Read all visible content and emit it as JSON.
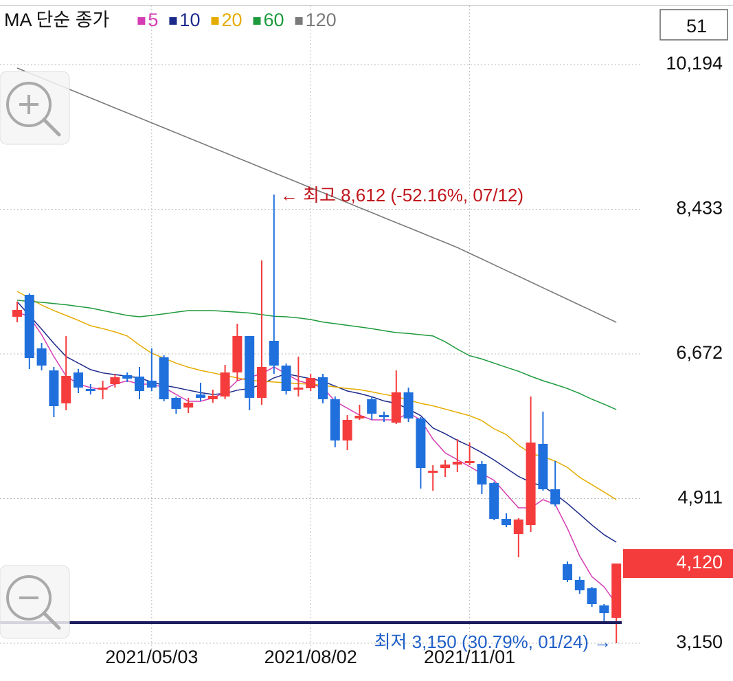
{
  "chart_data": {
    "type": "candlestick",
    "legend_title": "MA 단순 종가",
    "badge": "51",
    "categories": [
      null,
      null,
      null,
      null,
      null,
      null,
      null,
      null,
      null,
      null,
      null,
      "2021/05/03",
      null,
      null,
      null,
      null,
      null,
      null,
      null,
      null,
      null,
      null,
      null,
      null,
      "2021/08/02",
      null,
      null,
      null,
      null,
      null,
      null,
      null,
      null,
      null,
      null,
      null,
      null,
      "2021/11/01",
      null,
      null,
      null,
      null,
      null,
      null,
      null,
      null,
      null,
      null,
      null,
      null
    ],
    "open": [
      7124,
      7391,
      6739,
      6471,
      6070,
      6446,
      6245,
      6237,
      6304,
      6413,
      6396,
      6346,
      6630,
      6137,
      6019,
      6178,
      6120,
      6153,
      6446,
      6890,
      6137,
      6831,
      6530,
      6237,
      6254,
      6388,
      6120,
      5618,
      5886,
      6120,
      5927,
      5835,
      6204,
      5886,
      5225,
      5283,
      5325,
      5342,
      5333,
      5099,
      4664,
      4480,
      4589,
      5576,
      5024,
      4112,
      3920,
      3819,
      3610,
      3459
    ],
    "high": [
      7308,
      7408,
      6806,
      6513,
      6890,
      6488,
      6304,
      6346,
      6429,
      6446,
      6513,
      6739,
      6655,
      6153,
      6137,
      6321,
      6237,
      6538,
      7040,
      6890,
      7810,
      8612,
      6555,
      6639,
      6429,
      6429,
      6153,
      5927,
      6053,
      6153,
      5969,
      6471,
      6262,
      5902,
      5317,
      5384,
      5635,
      5593,
      5367,
      5116,
      4731,
      4673,
      6153,
      5969,
      5367,
      4145,
      3961,
      3836,
      3627,
      4120
    ],
    "low": [
      7057,
      6488,
      6471,
      5902,
      5986,
      6195,
      6178,
      6120,
      6262,
      6329,
      6120,
      6220,
      6095,
      5944,
      5953,
      6095,
      6078,
      6120,
      6346,
      5986,
      6053,
      6429,
      6178,
      6153,
      6220,
      6070,
      5534,
      5501,
      5869,
      5869,
      5844,
      5819,
      5844,
      5032,
      5007,
      5174,
      5233,
      5317,
      4965,
      4647,
      4564,
      4196,
      4505,
      5007,
      4815,
      3894,
      3752,
      3593,
      3418,
      3150
    ],
    "close": [
      7207,
      6622,
      6530,
      6036,
      6404,
      6262,
      6220,
      6262,
      6388,
      6371,
      6220,
      6262,
      6120,
      6003,
      6078,
      6137,
      6162,
      6446,
      6890,
      6137,
      6513,
      6530,
      6220,
      6262,
      6379,
      6120,
      5618,
      5869,
      5919,
      5944,
      5902,
      6204,
      5886,
      5283,
      5250,
      5325,
      5359,
      5367,
      5082,
      4664,
      4589,
      4656,
      5593,
      5024,
      4840,
      3920,
      3794,
      3627,
      3518,
      4120
    ],
    "up_color": "#f53c3c",
    "down_color": "#1f6fdc",
    "series": [
      {
        "name": "5",
        "color": "#d53cb4",
        "values": [
          7182,
          7124,
          6906,
          6639,
          6404,
          6304,
          6262,
          6237,
          6304,
          6346,
          6304,
          6304,
          6262,
          6178,
          6095,
          6095,
          6137,
          6204,
          6346,
          6388,
          6429,
          6513,
          6429,
          6346,
          6304,
          6262,
          6095,
          6011,
          5927,
          5869,
          5869,
          5869,
          5953,
          5869,
          5635,
          5467,
          5384,
          5300,
          5216,
          5133,
          4965,
          4798,
          4798,
          4898,
          4840,
          4547,
          4212,
          3961,
          3836,
          3627
        ]
      },
      {
        "name": "10",
        "color": "#1c2a8a",
        "values": [
          7308,
          7140,
          6973,
          6800,
          6639,
          6560,
          6480,
          6440,
          6420,
          6400,
          6380,
          6330,
          6290,
          6262,
          6230,
          6200,
          6178,
          6190,
          6230,
          6250,
          6300,
          6380,
          6429,
          6400,
          6370,
          6340,
          6280,
          6220,
          6190,
          6150,
          6100,
          6070,
          6000,
          5920,
          5770,
          5700,
          5620,
          5551,
          5470,
          5380,
          5280,
          5180,
          5110,
          5060,
          4965,
          4850,
          4720,
          4590,
          4470,
          4380
        ]
      },
      {
        "name": "20",
        "color": "#e5ab00",
        "values": [
          7433,
          7350,
          7266,
          7200,
          7140,
          7080,
          7015,
          6980,
          6940,
          6890,
          6780,
          6680,
          6620,
          6560,
          6510,
          6471,
          6440,
          6410,
          6380,
          6350,
          6340,
          6330,
          6320,
          6310,
          6304,
          6290,
          6270,
          6250,
          6237,
          6210,
          6180,
          6153,
          6110,
          6070,
          6040,
          6000,
          5960,
          5920,
          5860,
          5760,
          5690,
          5560,
          5460,
          5420,
          5367,
          5290,
          5170,
          5080,
          4990,
          4898
        ]
      },
      {
        "name": "60",
        "color": "#1e9a3c",
        "values": [
          7325,
          7310,
          7300,
          7285,
          7270,
          7250,
          7230,
          7200,
          7170,
          7140,
          7124,
          7140,
          7160,
          7180,
          7199,
          7199,
          7199,
          7190,
          7180,
          7170,
          7150,
          7130,
          7124,
          7110,
          7090,
          7060,
          7040,
          7020,
          7000,
          6980,
          6955,
          6931,
          6920,
          6905,
          6890,
          6820,
          6730,
          6650,
          6610,
          6560,
          6510,
          6460,
          6400,
          6346,
          6300,
          6250,
          6190,
          6120,
          6060,
          5994
        ]
      },
      {
        "name": "120",
        "color": "#7a7a7a",
        "values": [
          10152,
          10091,
          10031,
          9970,
          9909,
          9848,
          9788,
          9727,
          9666,
          9606,
          9545,
          9484,
          9424,
          9363,
          9302,
          9242,
          9181,
          9120,
          9059,
          8999,
          8938,
          8877,
          8817,
          8756,
          8695,
          8635,
          8574,
          8513,
          8452,
          8392,
          8331,
          8270,
          8210,
          8149,
          8088,
          8028,
          7967,
          7897,
          7827,
          7757,
          7687,
          7617,
          7547,
          7477,
          7407,
          7337,
          7267,
          7197,
          7127,
          7057
        ]
      }
    ],
    "ylim": [
      3075,
      10913
    ],
    "yticks": [
      {
        "value": 3150,
        "label": "3,150"
      },
      {
        "value": 4911,
        "label": "4,911"
      },
      {
        "value": 6672,
        "label": "6,672"
      },
      {
        "value": 8433,
        "label": "8,433"
      },
      {
        "value": 10194,
        "label": "10,194"
      }
    ],
    "reference_line": 3401,
    "current_price": {
      "value": 4120,
      "label": "4,120"
    },
    "high_annotation": "← 최고 8,612 (-52.16%, 07/12)",
    "low_annotation": "최저 3,150 (30.79%, 01/24) →",
    "grid": true
  }
}
